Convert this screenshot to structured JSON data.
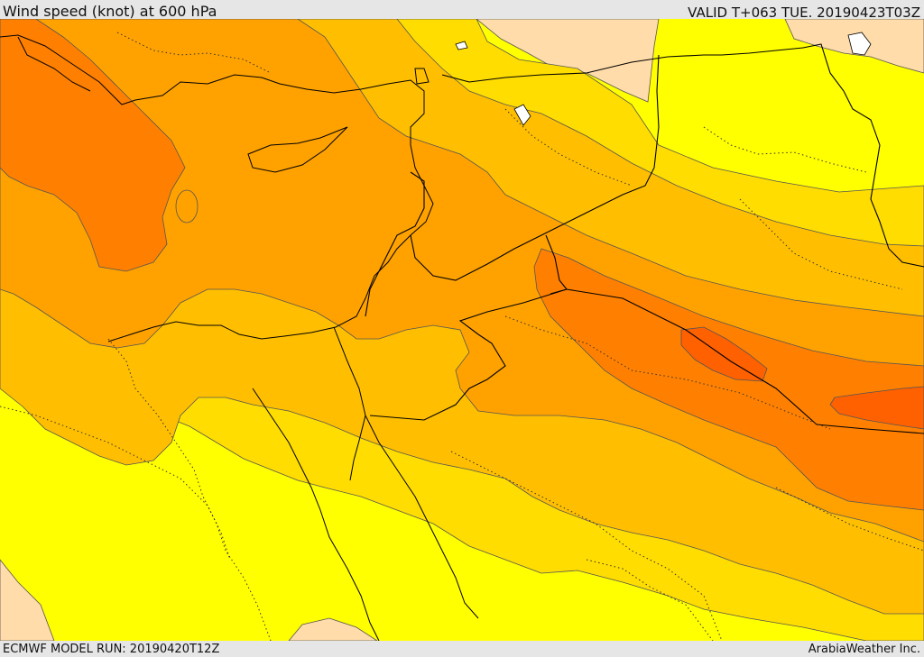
{
  "header": {
    "title": "Wind speed (knot) at 600 hPa",
    "valid": "VALID T+063 TUE. 20190423T03Z"
  },
  "footer": {
    "model_run": "ECMWF MODEL RUN: 20190420T12Z",
    "credit": "ArabiaWeather Inc."
  },
  "map": {
    "variable": "wind-speed",
    "level_hpa": 600,
    "units": "knot",
    "palette": [
      "#ffdcaa",
      "#ffff00",
      "#ffdd00",
      "#ffbf00",
      "#ffa200",
      "#ff8000",
      "#ff6000"
    ],
    "land_lines": "#000000",
    "contour_lines": "#555555"
  }
}
